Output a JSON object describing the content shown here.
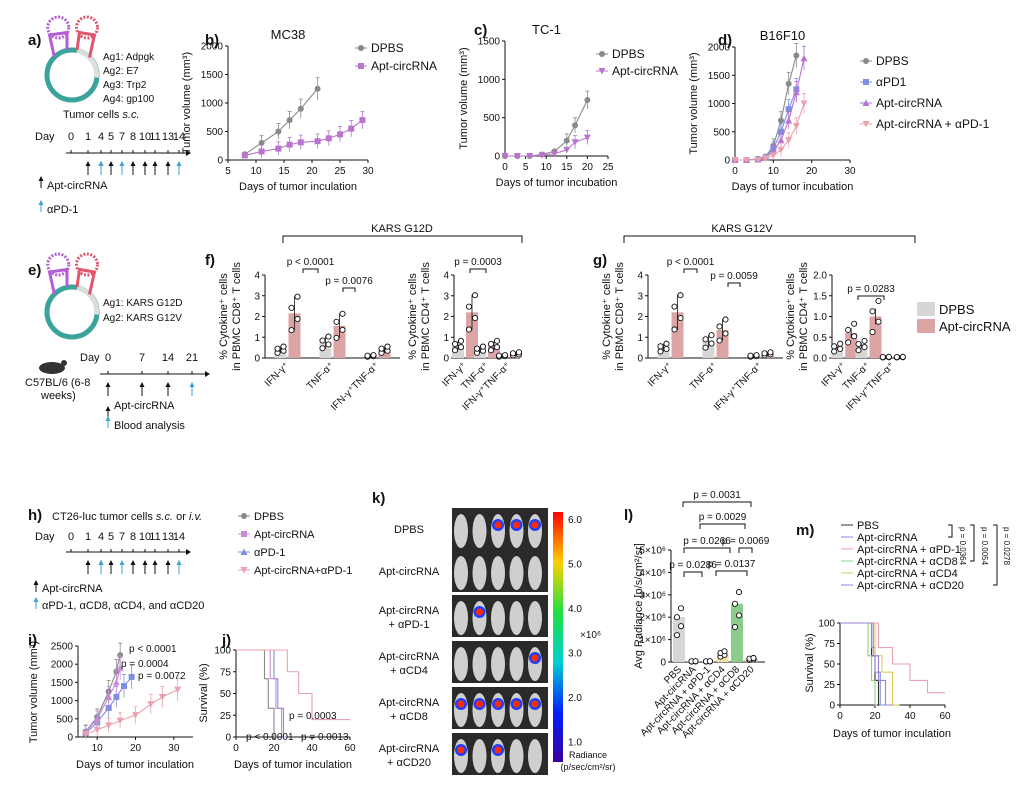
{
  "colors": {
    "dpbs": "#8a8a8a",
    "apt": "#c88bd6",
    "apd1": "#7e8fe0",
    "combo": "#e9a2ad",
    "aptPurple": "#b874cf",
    "cd8": "#8ccc8c",
    "cd4": "#e2c65a",
    "cd20": "#9b7fd6",
    "barGrey": "#d6d6d6",
    "barPink": "#dba5a5"
  },
  "panel_labels": {
    "a": "a)",
    "b": "b)",
    "c": "c)",
    "d": "d)",
    "e": "e)",
    "f": "f)",
    "g": "g)",
    "h": "h)",
    "i": "i)",
    "j": "j)",
    "k": "k)",
    "l": "l)",
    "m": "m)"
  },
  "panel_a": {
    "ag1": "Ag1: Adpgk",
    "ag2": "Ag2: E7",
    "ag3": "Ag3: Trp2",
    "ag4": "Ag4: gp100",
    "cells_prefix": "Tumor cells ",
    "cells_italic": "s.c.",
    "day_label": "Day",
    "days": [
      "0",
      "1",
      "4",
      "5",
      "7",
      "8",
      "10",
      "11",
      "13",
      "14"
    ],
    "legend_apt": "Apt-circRNA",
    "legend_apd1": "αPD-1"
  },
  "panel_e": {
    "ag1": "Ag1: KARS G12D",
    "ag2": "Ag2: KARS G12V",
    "mouse_l1": "C57BL/6 (6-8",
    "mouse_l2": "weeks)",
    "day_label": "Day",
    "days": [
      "0",
      "7",
      "14",
      "21"
    ],
    "legend_apt": "Apt-circRNA",
    "legend_blood": "Blood analysis"
  },
  "panel_h": {
    "title_prefix": "CT26-luc tumor cells ",
    "title_sc": "s.c.",
    "title_or": " or ",
    "title_iv": "i.v.",
    "day_label": "Day",
    "days": [
      "0",
      "1",
      "4",
      "5",
      "7",
      "8",
      "10",
      "11",
      "13",
      "14"
    ],
    "legend_apt": "Apt-circRNA",
    "legend_ab": "αPD-1, αCD8, αCD4, and αCD20",
    "series": [
      "DPBS",
      "Apt-circRNA",
      "αPD-1",
      "Apt-circRNA+αPD-1"
    ]
  },
  "kars": {
    "g12d": "KARS G12D",
    "g12v": "KARS G12V",
    "legend_dpbs": "DPBS",
    "legend_apt": "Apt-circRNA"
  },
  "panel_k": {
    "rows": [
      [
        "DPBS"
      ],
      [
        "Apt-circRNA"
      ],
      [
        "Apt-circRNA",
        "+ αPD-1"
      ],
      [
        "Apt-circRNA",
        "+ αCD4"
      ],
      [
        "Apt-circRNA",
        "+ αCD8"
      ],
      [
        "Apt-circRNA",
        "+ αCD20"
      ]
    ],
    "scale_ticks": [
      "6.0",
      "5.0",
      "4.0",
      "3.0",
      "2.0",
      "1.0"
    ],
    "scale_exp": "×10⁶",
    "scale_label1": "Radiance",
    "scale_label2": "(p/sec/cm²/sr)"
  },
  "chart_data": [
    {
      "id": "b",
      "type": "line",
      "title": "MC38",
      "xlabel": "Days of tumor inculation",
      "ylabel": "Tumor volume  (mm³)",
      "xlim": [
        5,
        30
      ],
      "ylim": [
        0,
        2000
      ],
      "xticks": [
        5,
        10,
        15,
        20,
        25,
        30
      ],
      "yticks": [
        0,
        500,
        1000,
        1500,
        2000
      ],
      "series": [
        {
          "name": "DPBS",
          "x": [
            8,
            11,
            14,
            16,
            18,
            21
          ],
          "y": [
            100,
            300,
            500,
            700,
            900,
            1250
          ]
        },
        {
          "name": "Apt-circRNA",
          "x": [
            8,
            11,
            14,
            16,
            18,
            21,
            23,
            25,
            27,
            29
          ],
          "y": [
            80,
            150,
            200,
            270,
            310,
            330,
            380,
            450,
            550,
            700
          ]
        }
      ]
    },
    {
      "id": "c",
      "type": "line",
      "title": "TC-1",
      "xlabel": "Days of tumor incubation",
      "ylabel": "Tumor volume (mm³)",
      "xlim": [
        0,
        25
      ],
      "ylim": [
        0,
        1500
      ],
      "xticks": [
        0,
        5,
        10,
        15,
        20,
        25
      ],
      "yticks": [
        0,
        500,
        1000,
        1500
      ],
      "series": [
        {
          "name": "DPBS",
          "x": [
            0,
            3,
            6,
            9,
            12,
            15,
            17,
            20
          ],
          "y": [
            0,
            0,
            0,
            20,
            60,
            200,
            400,
            730
          ]
        },
        {
          "name": "Apt-circRNA",
          "x": [
            0,
            3,
            6,
            9,
            12,
            15,
            17,
            20
          ],
          "y": [
            0,
            0,
            0,
            10,
            30,
            80,
            180,
            240
          ]
        }
      ]
    },
    {
      "id": "d",
      "type": "line",
      "title": "B16F10",
      "xlabel": "Days of tumor incubation",
      "ylabel": "Tumor volume (mm³)",
      "xlim": [
        0,
        30
      ],
      "ylim": [
        0,
        2000
      ],
      "xticks": [
        0,
        10,
        20,
        30
      ],
      "yticks": [
        0,
        500,
        1000,
        1500,
        2000
      ],
      "series": [
        {
          "name": "DPBS",
          "x": [
            0,
            3,
            6,
            8,
            10,
            12,
            14,
            16
          ],
          "y": [
            0,
            0,
            20,
            60,
            250,
            700,
            1350,
            1850
          ]
        },
        {
          "name": "αPD1",
          "x": [
            0,
            3,
            6,
            8,
            10,
            12,
            14,
            16
          ],
          "y": [
            0,
            0,
            10,
            50,
            200,
            500,
            900,
            1250
          ]
        },
        {
          "name": "Apt-circRNA",
          "x": [
            0,
            3,
            6,
            8,
            10,
            12,
            14,
            16,
            18
          ],
          "y": [
            0,
            0,
            10,
            40,
            150,
            350,
            700,
            1200,
            1800
          ]
        },
        {
          "name": "Apt-circRNA + αPD-1",
          "x": [
            0,
            3,
            6,
            8,
            10,
            12,
            14,
            16,
            18
          ],
          "y": [
            0,
            0,
            0,
            30,
            80,
            180,
            350,
            600,
            1000
          ]
        }
      ]
    },
    {
      "id": "f1",
      "type": "bar",
      "ylabel1": "% Cytokine⁺ cells",
      "ylabel2": "in PBMC CD8⁺ T cells",
      "categories": [
        "IFN-γ⁺",
        "TNF-α⁺",
        "IFN-γ⁺TNF-α⁺"
      ],
      "ylim": [
        0,
        4
      ],
      "yticks": [
        0,
        1,
        2,
        3,
        4
      ],
      "series": [
        {
          "name": "DPBS",
          "values": [
            0.4,
            0.75,
            0.1
          ]
        },
        {
          "name": "Apt-circRNA",
          "values": [
            2.15,
            1.55,
            0.4
          ]
        }
      ],
      "annotations": [
        "p < 0.0001",
        "p = 0.0076"
      ]
    },
    {
      "id": "f2",
      "type": "bar",
      "ylabel1": "% Cytokine⁺ cells",
      "ylabel2": "in PBMC CD4⁺ T cells",
      "categories": [
        "IFN-γ⁺",
        "TNF-α⁺",
        "IFN-γ⁺TNF-α⁺"
      ],
      "ylim": [
        0,
        4
      ],
      "yticks": [
        0,
        1,
        2,
        3,
        4
      ],
      "series": [
        {
          "name": "DPBS",
          "values": [
            0.6,
            0.4,
            0.1
          ]
        },
        {
          "name": "Apt-circRNA",
          "values": [
            2.2,
            0.6,
            0.2
          ]
        }
      ],
      "annotations": [
        "p = 0.0003"
      ]
    },
    {
      "id": "g1",
      "type": "bar",
      "ylabel1": "% Cytokine⁺ cells",
      "ylabel2": "in PBMC CD8⁺ T cells",
      "categories": [
        "IFN-γ⁺",
        "TNF-α⁺",
        "IFN-γ⁺TNF-α⁺"
      ],
      "ylim": [
        0,
        4
      ],
      "yticks": [
        0,
        1,
        2,
        3,
        4
      ],
      "series": [
        {
          "name": "DPBS",
          "values": [
            0.5,
            0.8,
            0.1
          ]
        },
        {
          "name": "Apt-circRNA",
          "values": [
            2.2,
            1.35,
            0.2
          ]
        }
      ],
      "annotations": [
        "p < 0.0001",
        "p = 0.0059"
      ]
    },
    {
      "id": "g2",
      "type": "bar",
      "ylabel1": "% Cytokine⁺ cells",
      "ylabel2": "in PBMC CD4⁺ T cells",
      "categories": [
        "IFN-γ⁺",
        "TNF-α⁺",
        "IFN-γ⁺TNF-α⁺"
      ],
      "ylim": [
        0,
        2
      ],
      "yticks": [
        0,
        0.5,
        1,
        1.5,
        2
      ],
      "yticklabels": [
        "0.0",
        "0.5",
        "1.0",
        "1.5",
        "2.0"
      ],
      "series": [
        {
          "name": "DPBS",
          "values": [
            0.25,
            0.3,
            0.02
          ]
        },
        {
          "name": "Apt-circRNA",
          "values": [
            0.6,
            1.0,
            0.02
          ]
        }
      ],
      "annotations": [
        "p = 0.0283"
      ]
    },
    {
      "id": "i",
      "type": "line",
      "xlabel": "Days of tumor inculation",
      "ylabel": "Tumor volume (mm³)",
      "xlim": [
        5,
        35
      ],
      "ylim": [
        0,
        2500
      ],
      "xticks": [
        10,
        20,
        30
      ],
      "yticks": [
        0,
        500,
        1000,
        1500,
        2000,
        2500
      ],
      "series": [
        {
          "name": "DPBS",
          "x": [
            7,
            10,
            13,
            15,
            16
          ],
          "y": [
            150,
            550,
            1250,
            1800,
            2250
          ]
        },
        {
          "name": "Apt-circRNA",
          "x": [
            7,
            10,
            13,
            15,
            17,
            19
          ],
          "y": [
            100,
            400,
            800,
            1100,
            1400,
            1650
          ]
        },
        {
          "name": "αPD-1",
          "x": [
            7,
            10,
            13,
            15,
            16
          ],
          "y": [
            130,
            500,
            1100,
            1500,
            1900
          ]
        },
        {
          "name": "Apt-circRNA+αPD-1",
          "x": [
            7,
            10,
            13,
            16,
            20,
            24,
            27,
            31
          ],
          "y": [
            80,
            200,
            320,
            450,
            600,
            900,
            1100,
            1300
          ]
        }
      ],
      "annotations": [
        "p < 0.0001",
        "p = 0.0004",
        "p = 0.0072"
      ]
    },
    {
      "id": "j",
      "type": "line",
      "xlabel": "Days of tumor inculation",
      "ylabel": "Survival (%)",
      "xlim": [
        0,
        60
      ],
      "ylim": [
        0,
        100
      ],
      "xticks": [
        0,
        20,
        40,
        60
      ],
      "yticks": [
        0,
        25,
        50,
        75,
        100
      ],
      "series": [
        {
          "name": "DPBS",
          "x": [
            0,
            15,
            15,
            17,
            17,
            20,
            20,
            22
          ],
          "y": [
            100,
            100,
            67,
            67,
            33,
            33,
            0,
            0
          ]
        },
        {
          "name": "Apt-circRNA",
          "x": [
            0,
            20,
            20,
            22,
            22,
            25,
            25,
            27
          ],
          "y": [
            100,
            100,
            67,
            67,
            33,
            33,
            0,
            0
          ]
        },
        {
          "name": "αPD-1",
          "x": [
            0,
            18,
            18,
            21,
            21,
            24,
            24,
            26
          ],
          "y": [
            100,
            100,
            67,
            67,
            33,
            33,
            0,
            0
          ]
        },
        {
          "name": "Apt-circRNA+αPD-1",
          "x": [
            0,
            27,
            27,
            33,
            33,
            40,
            40,
            60
          ],
          "y": [
            100,
            100,
            75,
            75,
            50,
            50,
            20,
            20
          ]
        }
      ],
      "annotations": [
        "p = 0.0003",
        "p < 0.0001",
        "p = 0.0013"
      ]
    },
    {
      "id": "l",
      "type": "bar",
      "ylabel": "Avg Radiance [p/s/cm²/sr]",
      "categories": [
        "PBS",
        "Apt-circRNA",
        "Apt-circRNA + αPD-1",
        "Apt-circRNA + αCD4",
        "Apt-circRNA + αCD8",
        "Apt-circRNA + αCD20"
      ],
      "ylim": [
        0,
        5000000
      ],
      "yticks": [
        "0",
        "1×10⁶",
        "2×10⁶",
        "3×10⁶",
        "4×10⁶",
        "5×10⁶"
      ],
      "values": [
        2000000,
        30000,
        30000,
        400000,
        2600000,
        150000
      ],
      "annotations": [
        "p = 0.0031",
        "p = 0.0029",
        "p = 0.0266",
        "p = 0.0069",
        "p = 0.0286",
        "p = 0.0137"
      ]
    },
    {
      "id": "m",
      "type": "line",
      "xlabel": "Days of tumor inculation",
      "ylabel": "Survival (%)",
      "xlim": [
        0,
        60
      ],
      "ylim": [
        0,
        100
      ],
      "xticks": [
        0,
        20,
        40,
        60
      ],
      "yticks": [
        0,
        25,
        50,
        75,
        100
      ],
      "series": [
        {
          "name": "PBS",
          "x": [
            0,
            18,
            18,
            20,
            20,
            22,
            22,
            24
          ],
          "y": [
            100,
            100,
            60,
            60,
            30,
            30,
            0,
            0
          ]
        },
        {
          "name": "Apt-circRNA",
          "x": [
            0,
            18,
            18,
            20,
            20,
            23,
            23,
            26
          ],
          "y": [
            100,
            100,
            70,
            70,
            40,
            40,
            0,
            0
          ]
        },
        {
          "name": "Apt-circRNA + αPD-1",
          "x": [
            0,
            22,
            22,
            30,
            30,
            40,
            40,
            50,
            50,
            60
          ],
          "y": [
            100,
            100,
            70,
            70,
            50,
            50,
            30,
            30,
            15,
            15
          ]
        },
        {
          "name": "Apt-circRNA + αCD8",
          "x": [
            0,
            16,
            16,
            18,
            18,
            20,
            20,
            21
          ],
          "y": [
            100,
            100,
            60,
            60,
            30,
            30,
            0,
            0
          ]
        },
        {
          "name": "Apt-circRNA + αCD4",
          "x": [
            0,
            20,
            20,
            24,
            24,
            30,
            30,
            34
          ],
          "y": [
            100,
            100,
            60,
            60,
            40,
            40,
            0,
            0
          ]
        },
        {
          "name": "Apt-circRNA + αCD20",
          "x": [
            0,
            19,
            19,
            22,
            22,
            26,
            26,
            30
          ],
          "y": [
            100,
            100,
            60,
            60,
            30,
            30,
            0,
            0
          ]
        }
      ],
      "annotations": [
        "p = 0.0364",
        "p = 0.0054",
        "p = 0.0278"
      ]
    }
  ]
}
